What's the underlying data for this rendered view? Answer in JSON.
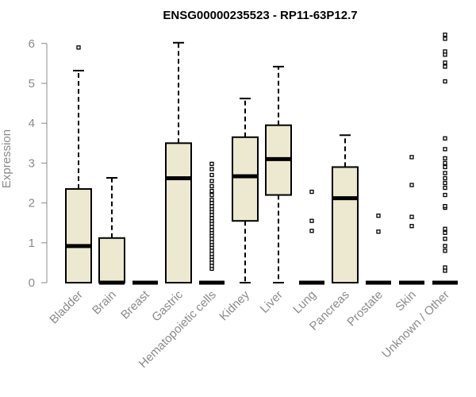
{
  "chart_data": {
    "type": "boxplot",
    "title": "ENSG00000235523 - RP11-63P12.7",
    "ylabel": "Expression",
    "ylim": [
      0,
      6.3
    ],
    "yticks": [
      0,
      1,
      2,
      3,
      4,
      5,
      6
    ],
    "grid": false,
    "box_color": "#EDE8D0",
    "categories": [
      "Bladder",
      "Brain",
      "Breast",
      "Gastric",
      "Hematopoietic cells",
      "Kidney",
      "Liver",
      "Lung",
      "Pancreas",
      "Prostate",
      "Skin",
      "Unknown / Other"
    ],
    "boxes": [
      {
        "min": 0,
        "q1": 0,
        "median": 0.92,
        "q3": 2.35,
        "max": 5.32,
        "outliers": [
          5.9
        ]
      },
      {
        "min": 0,
        "q1": 0,
        "median": 0,
        "q3": 1.12,
        "max": 2.63,
        "outliers": []
      },
      {
        "min": 0,
        "q1": 0,
        "median": 0,
        "q3": 0,
        "max": 0,
        "outliers": []
      },
      {
        "min": 0,
        "q1": 0,
        "median": 2.62,
        "q3": 3.5,
        "max": 6.02,
        "outliers": []
      },
      {
        "min": 0,
        "q1": 0,
        "median": 0,
        "q3": 0,
        "max": 0,
        "outliers": [
          0.35,
          0.42,
          0.5,
          0.58,
          0.65,
          0.72,
          0.8,
          0.88,
          0.95,
          1.02,
          1.1,
          1.18,
          1.25,
          1.32,
          1.4,
          1.48,
          1.55,
          1.62,
          1.7,
          1.78,
          1.85,
          1.92,
          2.0,
          2.08,
          2.2,
          2.3,
          2.42,
          2.55,
          2.7,
          2.85,
          2.98
        ]
      },
      {
        "min": 0,
        "q1": 1.55,
        "median": 2.67,
        "q3": 3.65,
        "max": 4.62,
        "outliers": []
      },
      {
        "min": 0,
        "q1": 2.2,
        "median": 3.1,
        "q3": 3.95,
        "max": 5.42,
        "outliers": []
      },
      {
        "min": 0,
        "q1": 0,
        "median": 0,
        "q3": 0,
        "max": 0,
        "outliers": [
          1.3,
          1.55,
          2.28
        ]
      },
      {
        "min": 0,
        "q1": 0,
        "median": 2.12,
        "q3": 2.9,
        "max": 3.7,
        "outliers": []
      },
      {
        "min": 0,
        "q1": 0,
        "median": 0,
        "q3": 0,
        "max": 0,
        "outliers": [
          1.28,
          1.68
        ]
      },
      {
        "min": 0,
        "q1": 0,
        "median": 0,
        "q3": 0,
        "max": 0,
        "outliers": [
          1.42,
          1.65,
          2.45,
          3.15
        ]
      },
      {
        "min": 0,
        "q1": 0,
        "median": 0,
        "q3": 0,
        "max": 0,
        "outliers": [
          0.3,
          0.38,
          0.8,
          0.92,
          1.1,
          1.25,
          1.35,
          1.88,
          1.92,
          2.2,
          2.38,
          2.5,
          2.62,
          2.75,
          2.9,
          3.0,
          3.12,
          3.35,
          3.62,
          5.05,
          5.42,
          5.52,
          5.72,
          5.8,
          6.12,
          6.22
        ]
      }
    ]
  }
}
